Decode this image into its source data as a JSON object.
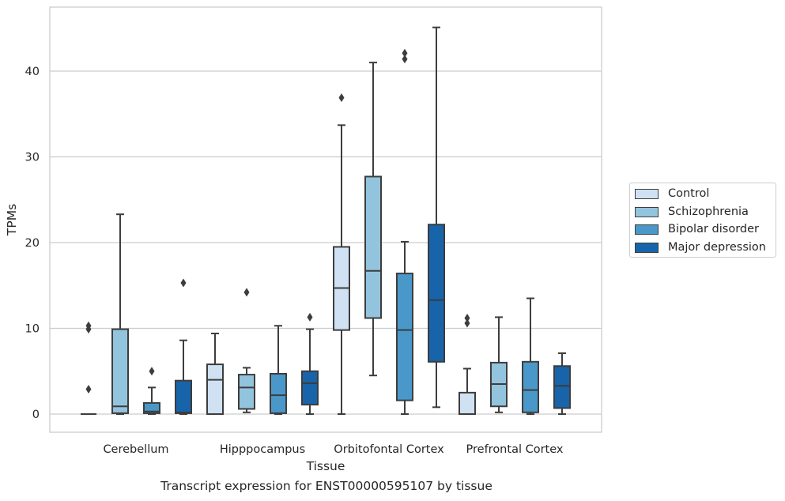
{
  "caption": "Transcript expression for ENST00000595107 by tissue",
  "colors": {
    "Control": "#cfe1f2",
    "Schizophrenia": "#93c4de",
    "Bipolar disorder": "#4a98c9",
    "Major depression": "#1764ab"
  },
  "chart_data": {
    "type": "box",
    "title": "",
    "xlabel": "Tissue",
    "ylabel": "TPMs",
    "ylim": [
      -2,
      47
    ],
    "yticks": [
      0,
      10,
      20,
      30,
      40
    ],
    "grid": "horizontal",
    "legend_position": "right",
    "categories": [
      "Cerebellum",
      "Hipppocampus",
      "Orbitofontal Cortex",
      "Prefrontal Cortex"
    ],
    "series": [
      {
        "name": "Control",
        "boxes": [
          {
            "whislo": 0,
            "q1": 0,
            "med": 0,
            "q3": 0,
            "whishi": 0,
            "fliers": [
              2.9,
              9.9,
              10.3
            ]
          },
          {
            "whislo": 0,
            "q1": 0,
            "med": 4.0,
            "q3": 5.8,
            "whishi": 9.4,
            "fliers": []
          },
          {
            "whislo": 0,
            "q1": 9.8,
            "med": 14.7,
            "q3": 19.5,
            "whishi": 33.7,
            "fliers": [
              36.9
            ]
          },
          {
            "whislo": 0,
            "q1": 0,
            "med": 0,
            "q3": 2.5,
            "whishi": 5.3,
            "fliers": [
              10.6,
              11.2
            ]
          }
        ]
      },
      {
        "name": "Schizophrenia",
        "boxes": [
          {
            "whislo": 0,
            "q1": 0.1,
            "med": 0.9,
            "q3": 9.9,
            "whishi": 23.3,
            "fliers": []
          },
          {
            "whislo": 0.2,
            "q1": 0.6,
            "med": 3.1,
            "q3": 4.6,
            "whishi": 5.4,
            "fliers": [
              14.2
            ]
          },
          {
            "whislo": 4.5,
            "q1": 11.2,
            "med": 16.7,
            "q3": 27.7,
            "whishi": 41.0,
            "fliers": []
          },
          {
            "whislo": 0.2,
            "q1": 0.9,
            "med": 3.5,
            "q3": 6.0,
            "whishi": 11.3,
            "fliers": []
          }
        ]
      },
      {
        "name": "Bipolar disorder",
        "boxes": [
          {
            "whislo": 0,
            "q1": 0.1,
            "med": 0.3,
            "q3": 1.3,
            "whishi": 3.1,
            "fliers": [
              5.0
            ]
          },
          {
            "whislo": 0,
            "q1": 0.1,
            "med": 2.2,
            "q3": 4.7,
            "whishi": 10.3,
            "fliers": []
          },
          {
            "whislo": 0,
            "q1": 1.6,
            "med": 9.8,
            "q3": 16.4,
            "whishi": 20.1,
            "fliers": [
              41.4,
              42.1
            ]
          },
          {
            "whislo": 0,
            "q1": 0.2,
            "med": 2.8,
            "q3": 6.1,
            "whishi": 13.5,
            "fliers": []
          }
        ]
      },
      {
        "name": "Major depression",
        "boxes": [
          {
            "whislo": 0,
            "q1": 0.1,
            "med": 0.2,
            "q3": 3.9,
            "whishi": 8.6,
            "fliers": [
              15.3
            ]
          },
          {
            "whislo": 0,
            "q1": 1.1,
            "med": 3.6,
            "q3": 5.0,
            "whishi": 9.9,
            "fliers": [
              11.3
            ]
          },
          {
            "whislo": 0.8,
            "q1": 6.1,
            "med": 13.3,
            "q3": 22.1,
            "whishi": 45.1,
            "fliers": []
          },
          {
            "whislo": 0,
            "q1": 0.7,
            "med": 3.3,
            "q3": 5.6,
            "whishi": 7.1,
            "fliers": []
          }
        ]
      }
    ]
  }
}
